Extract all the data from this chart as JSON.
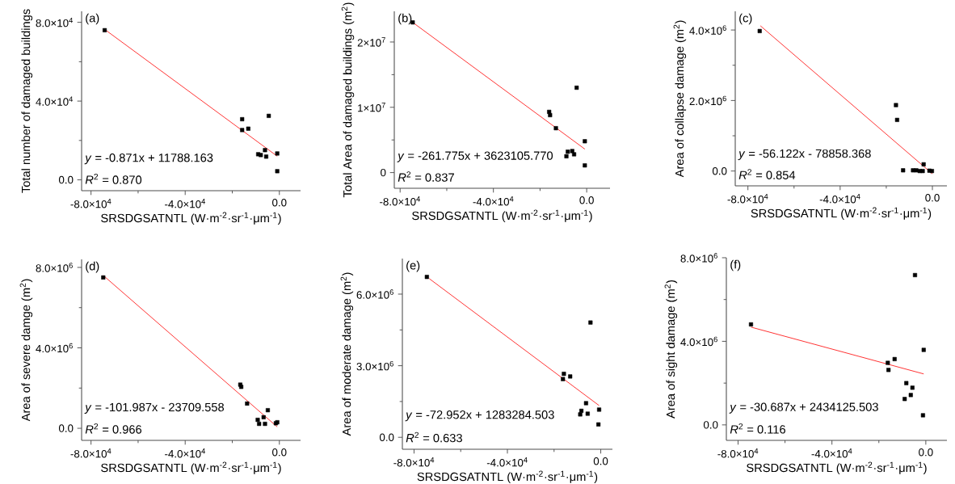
{
  "chart_data": [
    {
      "type": "scatter",
      "title": "(a)",
      "xlabel": "SRSDGSATNTL (W·m$^{-2}$·sr$^{-1}$·μm$^{-1}$)",
      "ylabel": "Total number of damaged buildings",
      "marker": "square",
      "xlim": [
        -84000,
        9000
      ],
      "ylim": [
        -5500,
        85600
      ],
      "xticks": [
        {
          "value": -80000,
          "label": "-8.0×10$^{4}$"
        },
        {
          "value": -60000,
          "label": null
        },
        {
          "value": -40000,
          "label": "-4.0×10$^{4}$"
        },
        {
          "value": -20000,
          "label": null
        },
        {
          "value": 0,
          "label": "0.0"
        }
      ],
      "yticks": [
        {
          "value": 0,
          "label": "0.0"
        },
        {
          "value": 20000,
          "label": null
        },
        {
          "value": 40000,
          "label": "4.0×10$^{4}$"
        },
        {
          "value": 60000,
          "label": null
        },
        {
          "value": 80000,
          "label": "8.0×10$^{4}$"
        }
      ],
      "annotations": [
        "*y* = -0.871x + 11788.163",
        "*R*$^{2}$ = 0.870"
      ],
      "series": [
        {
          "color": "#000000",
          "x": [
            -74200,
            -15800,
            -15800,
            -13200,
            -9000,
            -7900,
            -6100,
            -5600,
            -4500,
            -900,
            -900
          ],
          "values": [
            76000,
            30800,
            25300,
            26000,
            13000,
            12600,
            15100,
            11800,
            32500,
            13400,
            4400
          ]
        },
        {
          "type": "line",
          "marker": "none",
          "color": "#ff0000",
          "x": [
            -74200,
            -900
          ],
          "values": [
            76400,
            12000
          ]
        }
      ]
    },
    {
      "type": "scatter",
      "title": "(b)",
      "xlabel": "SRSDGSATNTL (W·m$^{-2}$·sr$^{-1}$·μm$^{-1}$)",
      "ylabel": "Total Area of damaged buildings (m$^{2}$)",
      "marker": "square",
      "xlim": [
        -82500,
        10000
      ],
      "ylim": [
        -2400000,
        24700000
      ],
      "xticks": [
        {
          "value": -80000,
          "label": "-8.0×10$^{4}$"
        },
        {
          "value": -60000,
          "label": null
        },
        {
          "value": -40000,
          "label": "-4.0×10$^{4}$"
        },
        {
          "value": -20000,
          "label": null
        },
        {
          "value": 0,
          "label": "0.0"
        }
      ],
      "yticks": [
        0,
        {
          "value": 5000000,
          "label": null
        },
        {
          "value": 10000000,
          "label": "1×10$^{7}$"
        },
        {
          "value": 15000000,
          "label": null
        },
        {
          "value": 20000000,
          "label": "2×10$^{7}$"
        }
      ],
      "annotations": [
        "*y* = -261.775x + 3623105.770",
        "*R*$^{2}$ = 0.837"
      ],
      "series": [
        {
          "color": "#000000",
          "x": [
            -74600,
            -16100,
            -15700,
            -13200,
            -8700,
            -8100,
            -6200,
            -5400,
            -4300,
            -800,
            -800
          ],
          "values": [
            23000000,
            9300000,
            8800000,
            6800000,
            2500000,
            3200000,
            3300000,
            2800000,
            13000000,
            4800000,
            1100000
          ]
        },
        {
          "type": "line",
          "marker": "none",
          "color": "#ff0000",
          "x": [
            -74600,
            -800
          ],
          "values": [
            23000000,
            3600000
          ]
        }
      ]
    },
    {
      "type": "scatter",
      "title": "(c)",
      "xlabel": "SRSDGSATNTL (W·m$^{-2}$·sr$^{-1}$·μm$^{-1}$)",
      "ylabel": "Area of collapse damage (m$^{2}$)",
      "marker": "square",
      "xlim": [
        -85500,
        6300
      ],
      "ylim": [
        -420000,
        4530000
      ],
      "xticks": [
        {
          "value": -80000,
          "label": "-8.0×10$^{4}$"
        },
        {
          "value": -60000,
          "label": null
        },
        {
          "value": -40000,
          "label": "-4.0×10$^{4}$"
        },
        {
          "value": -20000,
          "label": null
        },
        {
          "value": 0,
          "label": "0.0"
        }
      ],
      "yticks": [
        {
          "value": 0,
          "label": "0.0"
        },
        {
          "value": 1000000,
          "label": null
        },
        {
          "value": 2000000,
          "label": "2.0×10$^{6}$"
        },
        {
          "value": 3000000,
          "label": null
        },
        {
          "value": 4000000,
          "label": "4.0×10$^{6}$"
        }
      ],
      "annotations": [
        "*y* = -56.122x - 78858.368",
        "*R*$^{2}$ = 0.854"
      ],
      "series": [
        {
          "color": "#000000",
          "x": [
            -74900,
            -15800,
            -15300,
            -12700,
            -8400,
            -7000,
            -5500,
            -4200,
            -3800,
            -1300,
            -200
          ],
          "values": [
            3970000,
            1870000,
            1450000,
            20000,
            20000,
            20000,
            0,
            0,
            190000,
            10000,
            0
          ]
        },
        {
          "type": "line",
          "marker": "none",
          "color": "#ff0000",
          "x": [
            -74600,
            0
          ],
          "values": [
            4120000,
            -80000
          ]
        }
      ]
    },
    {
      "type": "scatter",
      "title": "(d)",
      "xlabel": "SRSDGSATNTL (W·m$^{-2}$·sr$^{-1}$·μm$^{-1}$)",
      "ylabel": "Area of severe damge (m$^{2}$)",
      "marker": "square",
      "xlim": [
        -84000,
        9000
      ],
      "ylim": [
        -600000,
        8400000
      ],
      "xticks": [
        {
          "value": -80000,
          "label": "-8.0×10$^{4}$"
        },
        {
          "value": -60000,
          "label": null
        },
        {
          "value": -40000,
          "label": "-4.0×10$^{4}$"
        },
        {
          "value": -20000,
          "label": null
        },
        {
          "value": 0,
          "label": "0.0"
        }
      ],
      "yticks": [
        {
          "value": 0,
          "label": "0.0"
        },
        {
          "value": 2000000,
          "label": null
        },
        {
          "value": 4000000,
          "label": "4.0×10$^{6}$"
        },
        {
          "value": 6000000,
          "label": null
        },
        {
          "value": 8000000,
          "label": "8.0×10$^{6}$"
        }
      ],
      "annotations": [
        "*y* = -101.987x - 23709.558",
        "*R*$^{2}$ = 0.966"
      ],
      "series": [
        {
          "color": "#000000",
          "x": [
            -74800,
            -16600,
            -16200,
            -13700,
            -9200,
            -8600,
            -6700,
            -6100,
            -4900,
            -1500,
            -900
          ],
          "values": [
            7500000,
            2170000,
            2060000,
            1230000,
            420000,
            220000,
            550000,
            220000,
            900000,
            250000,
            300000
          ]
        },
        {
          "type": "line",
          "marker": "none",
          "color": "#ff0000",
          "x": [
            -74800,
            -900
          ],
          "values": [
            7600000,
            70000
          ]
        }
      ]
    },
    {
      "type": "scatter",
      "title": "(e)",
      "xlabel": "SRSDGSATNTL (W·m$^{-2}$·sr$^{-1}$·μm$^{-1}$)",
      "ylabel": "Area of moderate damage (m$^{2}$)",
      "marker": "square",
      "xlim": [
        -85000,
        5000
      ],
      "ylim": [
        -500000,
        7490000
      ],
      "xticks": [
        {
          "value": -80000,
          "label": "-8.0×10$^{4}$"
        },
        {
          "value": -60000,
          "label": null
        },
        {
          "value": -40000,
          "label": "-4.0×10$^{4}$"
        },
        {
          "value": -20000,
          "label": null
        },
        {
          "value": 0,
          "label": "0.0"
        }
      ],
      "yticks": [
        {
          "value": 0,
          "label": "0.0"
        },
        {
          "value": 1500000,
          "label": null
        },
        {
          "value": 3000000,
          "label": "3.0×10$^{6}$"
        },
        {
          "value": 4500000,
          "label": null
        },
        {
          "value": 6000000,
          "label": "6.0×10$^{6}$"
        }
      ],
      "annotations": [
        "*y* = -72.952x + 1283284.503",
        "*R*$^{2}$ = 0.633"
      ],
      "series": [
        {
          "color": "#000000",
          "x": [
            -74500,
            -16200,
            -15800,
            -13100,
            -8800,
            -8300,
            -6300,
            -5600,
            -4400,
            -1000,
            -700
          ],
          "values": [
            6720000,
            2440000,
            2660000,
            2550000,
            960000,
            1110000,
            1430000,
            990000,
            4810000,
            540000,
            1160000
          ]
        },
        {
          "type": "line",
          "marker": "none",
          "color": "#ff0000",
          "x": [
            -73500,
            -700
          ],
          "values": [
            6650000,
            1330000
          ]
        }
      ]
    },
    {
      "type": "scatter",
      "title": "(f)",
      "xlabel": "SRSDGSATNTL (W·m$^{-2}$·sr$^{-1}$·μm$^{-1}$)",
      "ylabel": "Area of sight damage (m$^{2}$)",
      "marker": "square",
      "xlim": [
        -85000,
        9000
      ],
      "ylim": [
        -740000,
        8000000
      ],
      "xticks": [
        {
          "value": -80000,
          "label": "-8.0×10$^{4}$"
        },
        {
          "value": -60000,
          "label": null
        },
        {
          "value": -40000,
          "label": "-4.0×10$^{4}$"
        },
        {
          "value": -20000,
          "label": null
        },
        {
          "value": 0,
          "label": "0.0"
        }
      ],
      "yticks": [
        {
          "value": 0,
          "label": "0.0"
        },
        {
          "value": 2000000,
          "label": null
        },
        {
          "value": 4000000,
          "label": "4.0×10$^{6}$"
        },
        {
          "value": 6000000,
          "label": null
        },
        {
          "value": 8000000,
          "label": "8.0×10$^{6}$"
        }
      ],
      "annotations": [
        "*y* = -30.687x + 2434125.503",
        "*R*$^{2}$ = 0.116"
      ],
      "series": [
        {
          "color": "#000000",
          "x": [
            -74500,
            -16200,
            -15900,
            -13300,
            -9000,
            -8300,
            -6400,
            -5700,
            -4600,
            -1200,
            -900
          ],
          "values": [
            4810000,
            2970000,
            2630000,
            3150000,
            1240000,
            2000000,
            1430000,
            1780000,
            7170000,
            460000,
            3590000
          ]
        },
        {
          "type": "line",
          "marker": "none",
          "color": "#ff0000",
          "x": [
            -74500,
            -900
          ],
          "values": [
            4680000,
            2440000
          ]
        }
      ]
    }
  ]
}
